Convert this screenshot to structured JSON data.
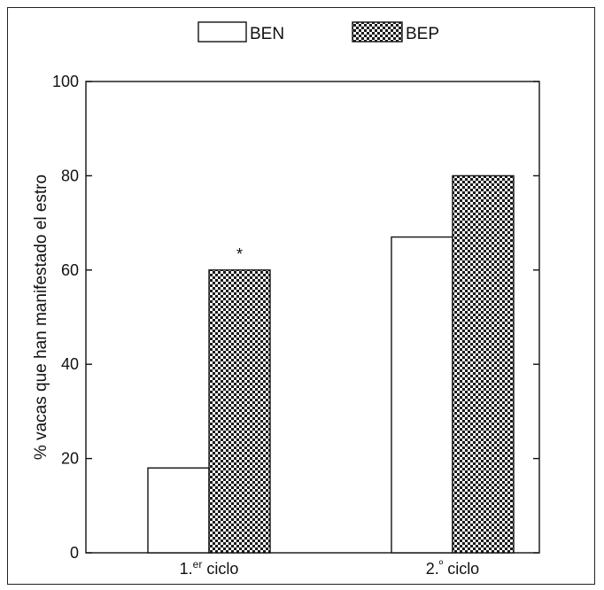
{
  "chart_data": {
    "type": "bar",
    "categories": [
      "1.er ciclo",
      "2.º ciclo"
    ],
    "category_parts": [
      {
        "base": "1.",
        "sup": "er",
        "rest": " ciclo"
      },
      {
        "base": "2.",
        "sup": "º",
        "rest": " ciclo"
      }
    ],
    "series": [
      {
        "name": "BEN",
        "values": [
          18,
          67
        ],
        "fill": "#ffffff"
      },
      {
        "name": "BEP",
        "values": [
          60,
          80
        ],
        "fill": "pattern"
      }
    ],
    "annotations": [
      {
        "category_index": 0,
        "series_index": 1,
        "text": "*"
      }
    ],
    "title": "",
    "xlabel": "",
    "ylabel": "% vacas que han manifestado el estro",
    "ylim": [
      0,
      100
    ],
    "yticks": [
      "0",
      "20",
      "40",
      "60",
      "80",
      "100"
    ],
    "grid": false,
    "legend_position": "top-center"
  }
}
